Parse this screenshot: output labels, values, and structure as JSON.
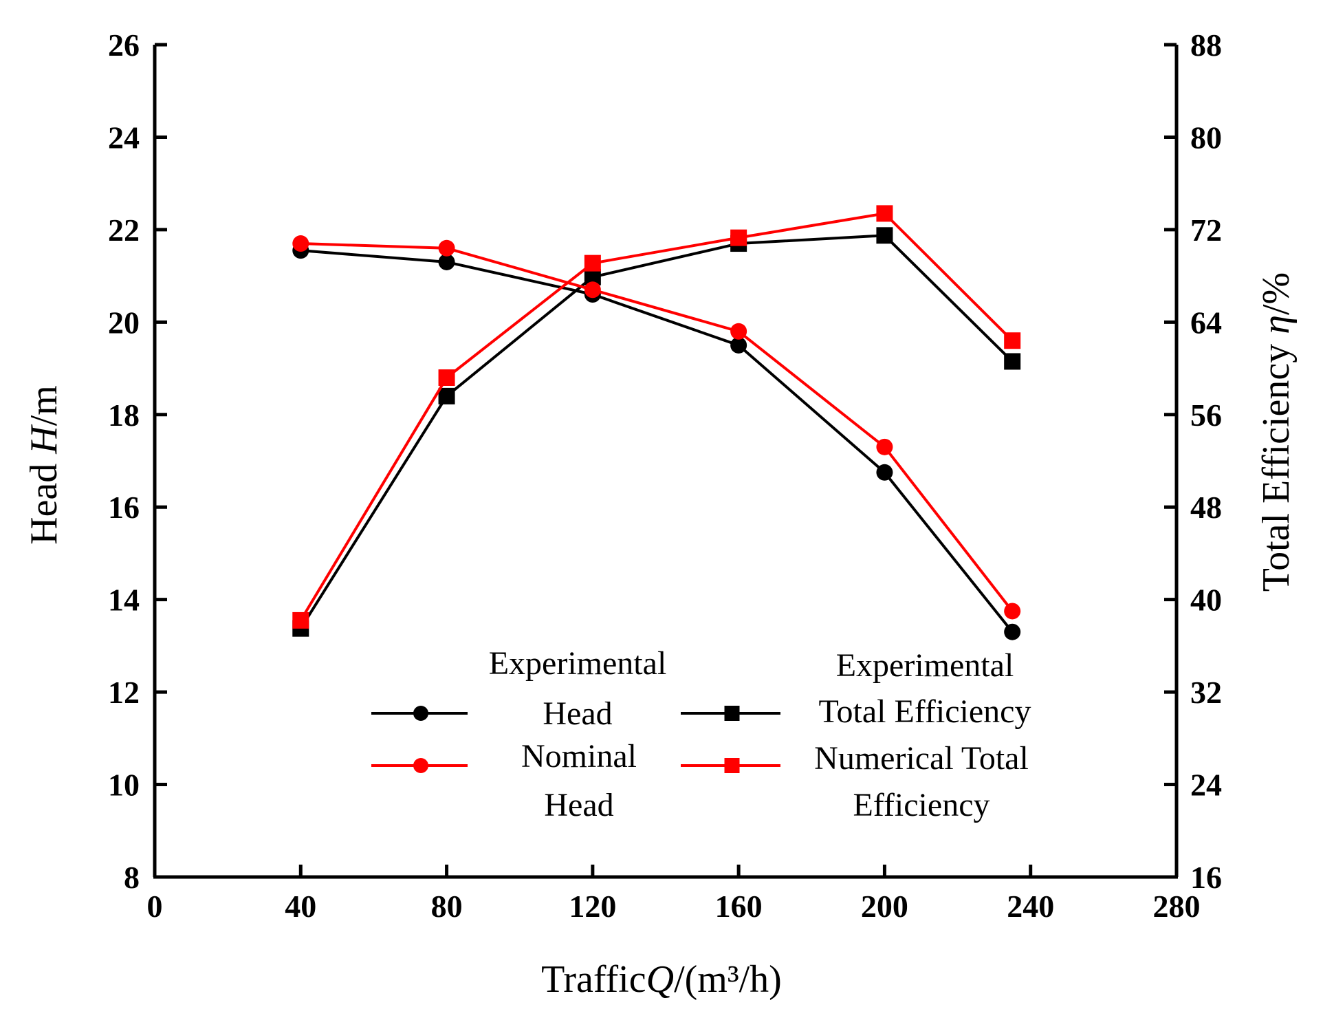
{
  "chart_data": {
    "type": "line",
    "xlabel": {
      "prefix": "Traffic",
      "symbol": "Q",
      "unit": "/(m³/h)"
    },
    "ylabel_left": {
      "prefix": "Head ",
      "symbol": "H",
      "unit": "/m"
    },
    "ylabel_right": {
      "prefix": "Total Efficiency ",
      "symbol": "η",
      "unit": "/%"
    },
    "xlim": [
      0,
      280
    ],
    "ylim_left": [
      8,
      26
    ],
    "ylim_right": [
      16,
      88
    ],
    "x_ticks": [
      0,
      40,
      80,
      120,
      160,
      200,
      240,
      280
    ],
    "y_left_ticks": [
      8,
      10,
      12,
      14,
      16,
      18,
      20,
      22,
      24,
      26
    ],
    "y_right_ticks": [
      16,
      24,
      32,
      40,
      48,
      56,
      64,
      72,
      80,
      88
    ],
    "grid": false,
    "legend_position": "bottom-center",
    "series": [
      {
        "name_lines": [
          "Experimental",
          "Head"
        ],
        "axis": "left",
        "marker": "circle",
        "color": "#000000",
        "x": [
          40,
          80,
          120,
          160,
          200,
          235
        ],
        "y": [
          21.55,
          21.3,
          20.6,
          19.5,
          16.75,
          13.3
        ]
      },
      {
        "name_lines": [
          "Nominal",
          "Head"
        ],
        "axis": "left",
        "marker": "circle",
        "color": "#ff0000",
        "x": [
          40,
          80,
          120,
          160,
          200,
          235
        ],
        "y": [
          21.7,
          21.6,
          20.7,
          19.8,
          17.3,
          13.75
        ]
      },
      {
        "name_lines": [
          "Experimental",
          "Total Efficiency"
        ],
        "axis": "right",
        "marker": "square",
        "color": "#000000",
        "x": [
          40,
          80,
          120,
          160,
          200,
          235
        ],
        "y": [
          37.5,
          57.6,
          67.9,
          70.8,
          71.5,
          60.6
        ]
      },
      {
        "name_lines": [
          "Numerical Total",
          "Efficiency"
        ],
        "axis": "right",
        "marker": "square",
        "color": "#ff0000",
        "x": [
          40,
          80,
          120,
          160,
          200,
          235
        ],
        "y": [
          38.2,
          59.2,
          69.1,
          71.3,
          73.4,
          62.4
        ]
      }
    ]
  }
}
